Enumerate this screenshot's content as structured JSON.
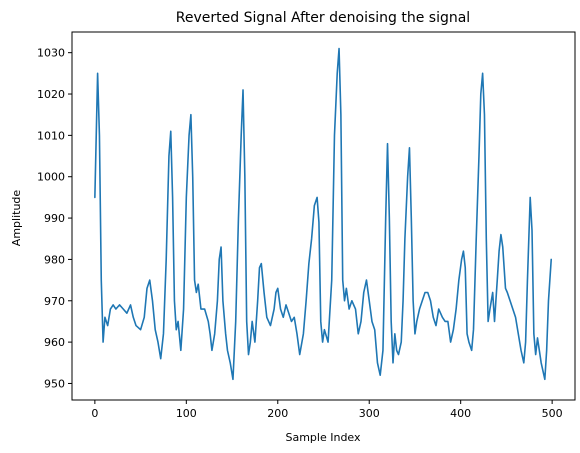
{
  "chart_data": {
    "type": "line",
    "title": "Reverted Signal After denoising the signal",
    "xlabel": "Sample Index",
    "ylabel": "Amplitude",
    "xlim": [
      -25,
      525
    ],
    "ylim": [
      946,
      1035
    ],
    "xticks": [
      0,
      100,
      200,
      300,
      400,
      500
    ],
    "yticks": [
      950,
      960,
      970,
      980,
      990,
      1000,
      1010,
      1020,
      1030
    ],
    "grid": false,
    "legend": "none",
    "color": "#1f77b4",
    "series": [
      {
        "points": [
          [
            0,
            995
          ],
          [
            3,
            1025
          ],
          [
            5,
            1010
          ],
          [
            7,
            975
          ],
          [
            9,
            960
          ],
          [
            11,
            966
          ],
          [
            14,
            964
          ],
          [
            17,
            968
          ],
          [
            20,
            969
          ],
          [
            23,
            968
          ],
          [
            27,
            969
          ],
          [
            31,
            968
          ],
          [
            35,
            967
          ],
          [
            39,
            969
          ],
          [
            42,
            966
          ],
          [
            45,
            964
          ],
          [
            50,
            963
          ],
          [
            54,
            966
          ],
          [
            57,
            973
          ],
          [
            60,
            975
          ],
          [
            63,
            970
          ],
          [
            66,
            963
          ],
          [
            69,
            960
          ],
          [
            72,
            956
          ],
          [
            75,
            962
          ],
          [
            78,
            980
          ],
          [
            81,
            1005
          ],
          [
            83,
            1011
          ],
          [
            85,
            995
          ],
          [
            87,
            970
          ],
          [
            89,
            963
          ],
          [
            91,
            965
          ],
          [
            94,
            958
          ],
          [
            97,
            968
          ],
          [
            100,
            995
          ],
          [
            103,
            1010
          ],
          [
            105,
            1015
          ],
          [
            107,
            1000
          ],
          [
            109,
            975
          ],
          [
            111,
            972
          ],
          [
            113,
            974
          ],
          [
            116,
            968
          ],
          [
            120,
            968
          ],
          [
            124,
            965
          ],
          [
            126,
            962
          ],
          [
            128,
            958
          ],
          [
            131,
            962
          ],
          [
            134,
            970
          ],
          [
            136,
            980
          ],
          [
            138,
            983
          ],
          [
            140,
            970
          ],
          [
            143,
            962
          ],
          [
            145,
            958
          ],
          [
            148,
            955
          ],
          [
            151,
            951
          ],
          [
            154,
            965
          ],
          [
            157,
            990
          ],
          [
            160,
            1010
          ],
          [
            162,
            1021
          ],
          [
            164,
            1000
          ],
          [
            166,
            965
          ],
          [
            168,
            957
          ],
          [
            170,
            960
          ],
          [
            172,
            965
          ],
          [
            175,
            960
          ],
          [
            178,
            970
          ],
          [
            180,
            978
          ],
          [
            182,
            979
          ],
          [
            185,
            972
          ],
          [
            188,
            966
          ],
          [
            192,
            964
          ],
          [
            196,
            968
          ],
          [
            198,
            972
          ],
          [
            200,
            973
          ],
          [
            203,
            968
          ],
          [
            206,
            966
          ],
          [
            209,
            969
          ],
          [
            212,
            967
          ],
          [
            215,
            965
          ],
          [
            218,
            966
          ],
          [
            221,
            962
          ],
          [
            224,
            957
          ],
          [
            228,
            962
          ],
          [
            231,
            970
          ],
          [
            234,
            979
          ],
          [
            237,
            985
          ],
          [
            240,
            993
          ],
          [
            243,
            995
          ],
          [
            245,
            989
          ],
          [
            247,
            965
          ],
          [
            249,
            960
          ],
          [
            251,
            963
          ],
          [
            255,
            960
          ],
          [
            259,
            975
          ],
          [
            262,
            1010
          ],
          [
            265,
            1025
          ],
          [
            267,
            1031
          ],
          [
            269,
            1015
          ],
          [
            271,
            975
          ],
          [
            273,
            970
          ],
          [
            275,
            973
          ],
          [
            278,
            968
          ],
          [
            281,
            970
          ],
          [
            285,
            968
          ],
          [
            288,
            962
          ],
          [
            291,
            965
          ],
          [
            294,
            972
          ],
          [
            297,
            975
          ],
          [
            300,
            970
          ],
          [
            303,
            965
          ],
          [
            306,
            963
          ],
          [
            309,
            955
          ],
          [
            312,
            952
          ],
          [
            315,
            958
          ],
          [
            318,
            990
          ],
          [
            320,
            1008
          ],
          [
            322,
            990
          ],
          [
            324,
            965
          ],
          [
            326,
            955
          ],
          [
            328,
            962
          ],
          [
            330,
            958
          ],
          [
            332,
            957
          ],
          [
            335,
            960
          ],
          [
            337,
            970
          ],
          [
            339,
            985
          ],
          [
            342,
            1000
          ],
          [
            344,
            1007
          ],
          [
            346,
            990
          ],
          [
            348,
            970
          ],
          [
            350,
            962
          ],
          [
            352,
            965
          ],
          [
            355,
            968
          ],
          [
            358,
            970
          ],
          [
            361,
            972
          ],
          [
            364,
            972
          ],
          [
            367,
            970
          ],
          [
            370,
            966
          ],
          [
            373,
            964
          ],
          [
            376,
            968
          ],
          [
            380,
            966
          ],
          [
            383,
            965
          ],
          [
            386,
            965
          ],
          [
            389,
            960
          ],
          [
            392,
            963
          ],
          [
            395,
            968
          ],
          [
            398,
            975
          ],
          [
            401,
            980
          ],
          [
            403,
            982
          ],
          [
            405,
            978
          ],
          [
            407,
            962
          ],
          [
            409,
            960
          ],
          [
            412,
            958
          ],
          [
            414,
            963
          ],
          [
            417,
            985
          ],
          [
            420,
            1005
          ],
          [
            422,
            1020
          ],
          [
            424,
            1025
          ],
          [
            426,
            1015
          ],
          [
            428,
            985
          ],
          [
            430,
            965
          ],
          [
            432,
            968
          ],
          [
            435,
            972
          ],
          [
            437,
            965
          ],
          [
            440,
            975
          ],
          [
            442,
            982
          ],
          [
            444,
            986
          ],
          [
            446,
            983
          ],
          [
            449,
            973
          ],
          [
            451,
            972
          ],
          [
            454,
            970
          ],
          [
            457,
            968
          ],
          [
            460,
            966
          ],
          [
            463,
            962
          ],
          [
            466,
            958
          ],
          [
            469,
            955
          ],
          [
            471,
            960
          ],
          [
            473,
            975
          ],
          [
            476,
            995
          ],
          [
            478,
            987
          ],
          [
            480,
            962
          ],
          [
            482,
            957
          ],
          [
            484,
            961
          ],
          [
            486,
            958
          ],
          [
            488,
            955
          ],
          [
            490,
            953
          ],
          [
            492,
            951
          ],
          [
            494,
            958
          ],
          [
            496,
            970
          ],
          [
            499,
            980
          ]
        ]
      }
    ]
  }
}
